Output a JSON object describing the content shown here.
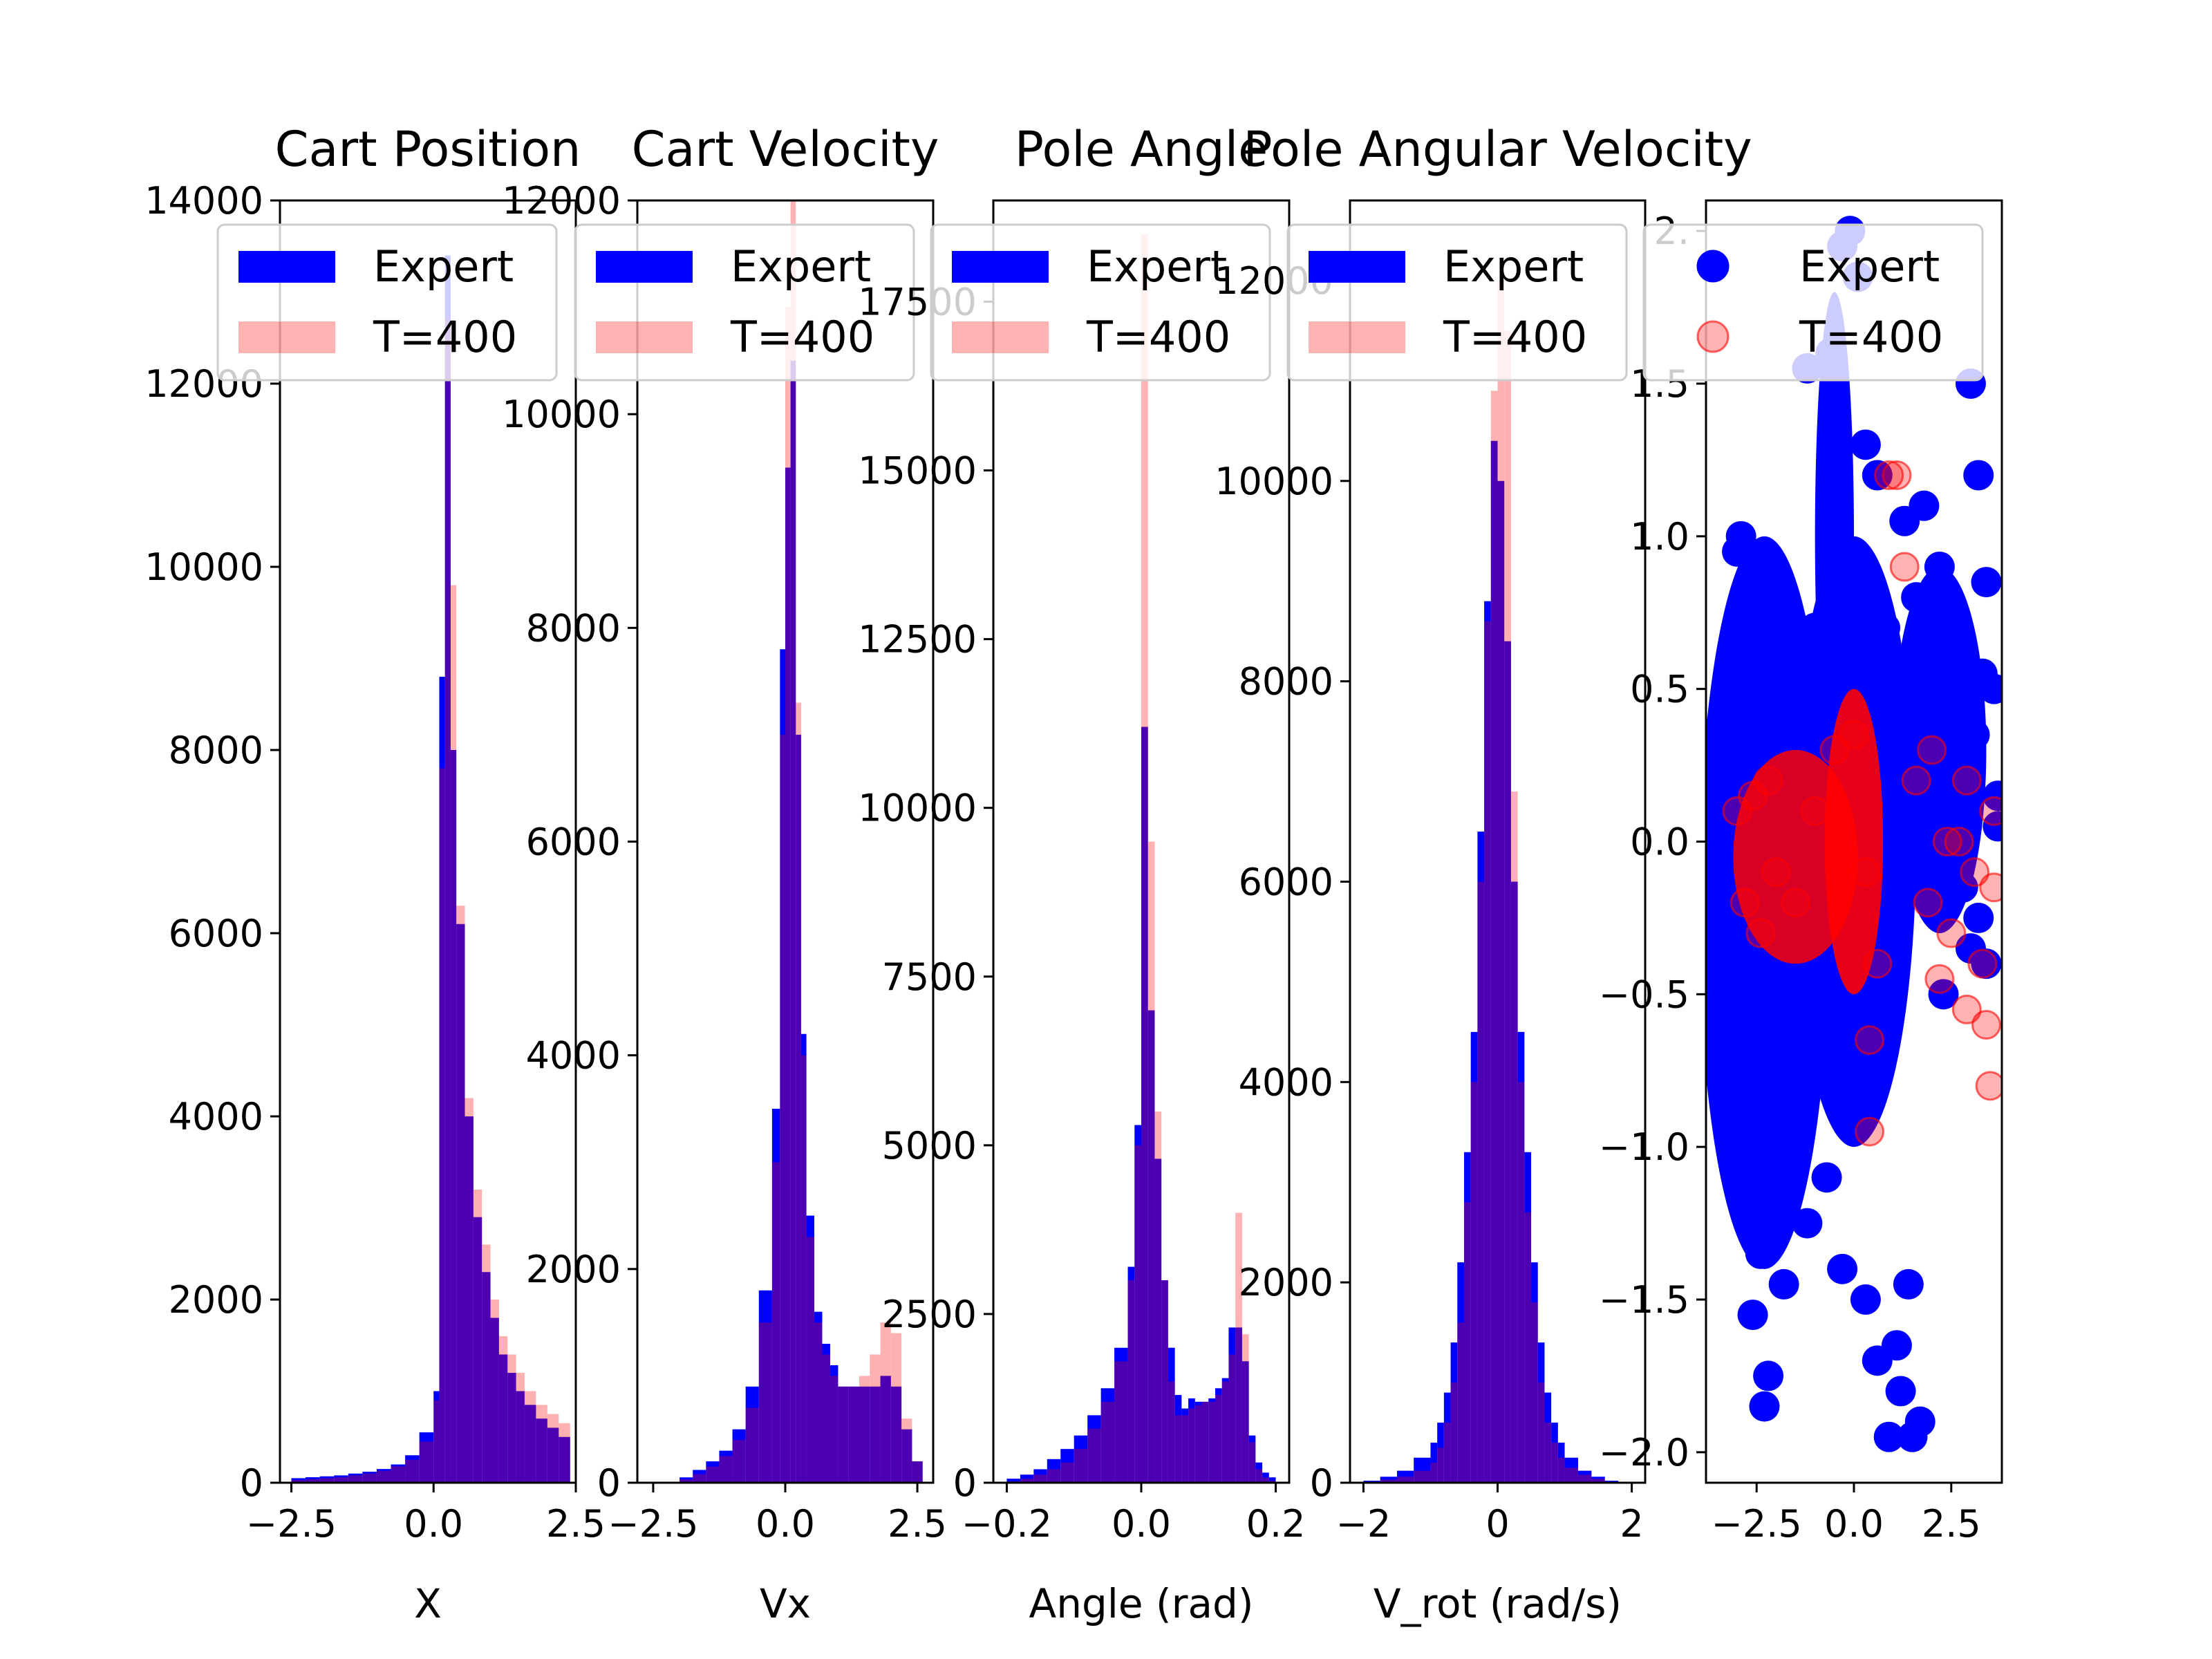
{
  "chart_data": [
    {
      "type": "bar",
      "title": "Cart Position",
      "xlabel": "X",
      "ylabel": "",
      "xlim": [
        -2.7,
        2.5
      ],
      "ylim": [
        0,
        14000
      ],
      "xticks": [
        -2.5,
        0.0,
        2.5
      ],
      "xtick_labels": [
        "−2.5",
        "0.0",
        "2.5"
      ],
      "yticks": [
        0,
        2000,
        4000,
        6000,
        8000,
        10000,
        12000,
        14000
      ],
      "ytick_labels": [
        "0",
        "2000",
        "4000",
        "6000",
        "8000",
        "10000",
        "12000",
        "14000"
      ],
      "legend_position": "top",
      "bin_edges": [
        -2.5,
        -2.25,
        -2.0,
        -1.75,
        -1.5,
        -1.25,
        -1.0,
        -0.75,
        -0.5,
        -0.25,
        0.0,
        0.1,
        0.2,
        0.3,
        0.4,
        0.55,
        0.7,
        0.85,
        1.0,
        1.15,
        1.3,
        1.45,
        1.6,
        1.8,
        2.0,
        2.2,
        2.4
      ],
      "series": [
        {
          "name": "Expert",
          "color": "#0000ff",
          "values": [
            50,
            60,
            70,
            80,
            100,
            120,
            150,
            200,
            300,
            550,
            1000,
            8800,
            13400,
            8000,
            6100,
            4000,
            2900,
            2300,
            1800,
            1400,
            1200,
            1000,
            850,
            700,
            600,
            500
          ]
        },
        {
          "name": "T=400",
          "color": "#ff0000",
          "values": [
            30,
            40,
            50,
            60,
            80,
            100,
            130,
            180,
            250,
            450,
            900,
            7800,
            12700,
            9800,
            6300,
            4200,
            3200,
            2600,
            2000,
            1600,
            1400,
            1200,
            1000,
            850,
            750,
            650
          ]
        }
      ]
    },
    {
      "type": "bar",
      "title": "Cart Velocity",
      "xlabel": "Vx",
      "ylabel": "",
      "xlim": [
        -2.8,
        2.8
      ],
      "ylim": [
        0,
        12000
      ],
      "xticks": [
        -2.5,
        0.0,
        2.5
      ],
      "xtick_labels": [
        "−2.5",
        "0.0",
        "2.5"
      ],
      "yticks": [
        0,
        2000,
        4000,
        6000,
        8000,
        10000,
        12000
      ],
      "ytick_labels": [
        "0",
        "2000",
        "4000",
        "6000",
        "8000",
        "10000",
        "12000"
      ],
      "legend_position": "top",
      "bin_edges": [
        -2.0,
        -1.75,
        -1.5,
        -1.25,
        -1.0,
        -0.75,
        -0.5,
        -0.25,
        -0.1,
        0.0,
        0.1,
        0.2,
        0.3,
        0.4,
        0.55,
        0.7,
        0.85,
        1.0,
        1.2,
        1.4,
        1.6,
        1.8,
        2.0,
        2.2,
        2.4,
        2.6
      ],
      "series": [
        {
          "name": "Expert",
          "color": "#0000ff",
          "values": [
            50,
            120,
            200,
            300,
            500,
            900,
            1800,
            3500,
            7800,
            9500,
            10500,
            7000,
            4200,
            2500,
            1600,
            1300,
            1100,
            900,
            900,
            900,
            900,
            1000,
            900,
            500,
            200
          ]
        },
        {
          "name": "T=400",
          "color": "#ff0000",
          "values": [
            30,
            80,
            150,
            250,
            400,
            700,
            1500,
            3000,
            7000,
            11000,
            12000,
            7300,
            4000,
            2300,
            1500,
            1200,
            1000,
            900,
            900,
            1000,
            1200,
            1500,
            1400,
            600,
            200
          ]
        }
      ]
    },
    {
      "type": "bar",
      "title": "Pole Angle",
      "xlabel": "Angle (rad)",
      "ylabel": "",
      "xlim": [
        -0.22,
        0.22
      ],
      "ylim": [
        0,
        19000
      ],
      "xticks": [
        -0.2,
        0.0,
        0.2
      ],
      "xtick_labels": [
        "−0.2",
        "0.0",
        "0.2"
      ],
      "yticks": [
        0,
        2500,
        5000,
        7500,
        10000,
        12500,
        15000,
        17500
      ],
      "ytick_labels": [
        "0",
        "2500",
        "5000",
        "7500",
        "10000",
        "12500",
        "15000",
        "17500"
      ],
      "legend_position": "top",
      "bin_edges": [
        -0.2,
        -0.18,
        -0.16,
        -0.14,
        -0.12,
        -0.1,
        -0.08,
        -0.06,
        -0.04,
        -0.02,
        -0.01,
        0.0,
        0.01,
        0.02,
        0.03,
        0.04,
        0.05,
        0.06,
        0.07,
        0.08,
        0.09,
        0.1,
        0.11,
        0.12,
        0.13,
        0.14,
        0.15,
        0.16,
        0.17,
        0.18,
        0.19,
        0.2
      ],
      "series": [
        {
          "name": "Expert",
          "color": "#0000ff",
          "values": [
            60,
            120,
            200,
            350,
            500,
            700,
            1000,
            1400,
            2000,
            3200,
            5300,
            11200,
            7000,
            4800,
            3000,
            2000,
            1300,
            1100,
            1250,
            1200,
            1200,
            1250,
            1400,
            1550,
            2300,
            2300,
            1800,
            700,
            300,
            150,
            80
          ]
        },
        {
          "name": "T=400",
          "color": "#ff0000",
          "values": [
            20,
            60,
            120,
            200,
            300,
            500,
            800,
            1200,
            1800,
            3000,
            5000,
            18500,
            9500,
            5500,
            3000,
            1500,
            1000,
            1000,
            1100,
            1150,
            1200,
            1200,
            1300,
            1500,
            1900,
            4000,
            2200,
            600,
            200,
            80,
            30
          ]
        }
      ]
    },
    {
      "type": "bar",
      "title": "Pole Angular Velocity",
      "xlabel": "V_rot (rad/s)",
      "ylabel": "",
      "xlim": [
        -2.2,
        2.2
      ],
      "ylim": [
        0,
        12800
      ],
      "xticks": [
        -2,
        0,
        2
      ],
      "xtick_labels": [
        "−2",
        "0",
        "2"
      ],
      "yticks": [
        0,
        2000,
        4000,
        6000,
        8000,
        10000,
        12000
      ],
      "ytick_labels": [
        "0",
        "2000",
        "4000",
        "6000",
        "8000",
        "10000",
        "12000"
      ],
      "legend_position": "top",
      "bin_edges": [
        -2.0,
        -1.75,
        -1.5,
        -1.25,
        -1.0,
        -0.9,
        -0.8,
        -0.7,
        -0.6,
        -0.5,
        -0.4,
        -0.3,
        -0.2,
        -0.1,
        0.0,
        0.1,
        0.2,
        0.3,
        0.4,
        0.5,
        0.6,
        0.7,
        0.8,
        0.9,
        1.0,
        1.2,
        1.4,
        1.6,
        1.8
      ],
      "series": [
        {
          "name": "Expert",
          "color": "#0000ff",
          "values": [
            20,
            60,
            120,
            250,
            400,
            600,
            900,
            1400,
            2200,
            3300,
            4500,
            6500,
            8800,
            10400,
            10000,
            8400,
            6000,
            4500,
            3300,
            2200,
            1400,
            900,
            600,
            400,
            250,
            120,
            60,
            20
          ]
        },
        {
          "name": "T=400",
          "color": "#ff0000",
          "values": [
            10,
            30,
            60,
            120,
            200,
            350,
            600,
            1000,
            1600,
            2800,
            4000,
            6000,
            8600,
            10900,
            12000,
            11500,
            6900,
            4000,
            2700,
            1800,
            1000,
            600,
            400,
            250,
            150,
            80,
            40,
            10
          ]
        }
      ]
    },
    {
      "type": "scatter",
      "title": "",
      "xlabel": "",
      "ylabel": "",
      "xlim": [
        -3.8,
        3.8
      ],
      "ylim": [
        -2.1,
        2.1
      ],
      "xticks": [
        -2.5,
        0.0,
        2.5
      ],
      "xtick_labels": [
        "−2.5",
        "0.0",
        "2.5"
      ],
      "yticks": [
        -2.0,
        -1.5,
        -1.0,
        -0.5,
        0.0,
        0.5,
        1.0,
        1.5,
        2.0
      ],
      "ytick_labels": [
        "−2.0",
        "−1.5",
        "−1.0",
        "−0.5",
        "0.0",
        "0.5",
        "1.0",
        "1.5",
        "2."
      ],
      "legend_position": "top",
      "series": [
        {
          "name": "Expert",
          "color": "#0000ff",
          "opacity": 1.0,
          "points": [
            [
              -2.9,
              1.0
            ],
            [
              -3.0,
              0.95
            ],
            [
              -2.5,
              0.85
            ],
            [
              -2.3,
              0.65
            ],
            [
              -1.2,
              1.55
            ],
            [
              -0.6,
              1.6
            ],
            [
              -0.3,
              1.95
            ],
            [
              -0.1,
              2.0
            ],
            [
              0.1,
              1.85
            ],
            [
              0.3,
              1.3
            ],
            [
              0.6,
              1.2
            ],
            [
              1.3,
              1.05
            ],
            [
              1.8,
              1.1
            ],
            [
              2.2,
              0.9
            ],
            [
              3.0,
              1.5
            ],
            [
              3.2,
              1.2
            ],
            [
              3.4,
              0.85
            ],
            [
              3.6,
              0.5
            ],
            [
              3.7,
              0.15
            ],
            [
              3.7,
              0.05
            ],
            [
              -3.3,
              0.3
            ],
            [
              -3.2,
              -0.4
            ],
            [
              -3.0,
              -0.9
            ],
            [
              -2.8,
              -1.2
            ],
            [
              -2.6,
              -1.55
            ],
            [
              -2.4,
              -1.35
            ],
            [
              -2.2,
              -1.75
            ],
            [
              -2.3,
              -1.85
            ],
            [
              -1.8,
              -1.45
            ],
            [
              -1.2,
              -1.25
            ],
            [
              -0.7,
              -1.1
            ],
            [
              -0.3,
              -1.4
            ],
            [
              0.3,
              -1.5
            ],
            [
              0.6,
              -1.7
            ],
            [
              0.9,
              -1.95
            ],
            [
              1.2,
              -1.8
            ],
            [
              1.5,
              -1.95
            ],
            [
              1.7,
              -1.9
            ],
            [
              1.1,
              -1.65
            ],
            [
              1.4,
              -1.45
            ],
            [
              2.3,
              -0.5
            ],
            [
              2.8,
              -0.15
            ],
            [
              3.0,
              -0.35
            ],
            [
              3.2,
              -0.25
            ],
            [
              3.4,
              -0.4
            ],
            [
              3.1,
              0.35
            ],
            [
              3.3,
              0.55
            ],
            [
              -1.6,
              0.45
            ],
            [
              -1.0,
              0.7
            ],
            [
              0.8,
              0.7
            ],
            [
              1.6,
              0.8
            ],
            [
              2.6,
              0.65
            ]
          ]
        },
        {
          "name": "T=400",
          "color": "#ff0000",
          "opacity": 0.3,
          "points": [
            [
              -3.0,
              0.1
            ],
            [
              -2.8,
              -0.2
            ],
            [
              -2.6,
              0.15
            ],
            [
              -2.4,
              -0.3
            ],
            [
              -2.2,
              0.2
            ],
            [
              -2.0,
              -0.1
            ],
            [
              -1.5,
              -0.2
            ],
            [
              -1.0,
              0.1
            ],
            [
              -0.5,
              0.3
            ],
            [
              0.0,
              0.35
            ],
            [
              0.3,
              -0.1
            ],
            [
              0.6,
              -0.4
            ],
            [
              0.9,
              1.2
            ],
            [
              1.1,
              1.2
            ],
            [
              1.3,
              0.9
            ],
            [
              1.6,
              0.2
            ],
            [
              1.9,
              -0.2
            ],
            [
              2.2,
              -0.45
            ],
            [
              2.5,
              -0.3
            ],
            [
              2.7,
              0.0
            ],
            [
              2.9,
              0.2
            ],
            [
              3.1,
              -0.1
            ],
            [
              3.3,
              -0.4
            ],
            [
              3.4,
              -0.6
            ],
            [
              3.5,
              -0.8
            ],
            [
              3.6,
              0.1
            ],
            [
              3.6,
              -0.15
            ],
            [
              2.9,
              -0.55
            ],
            [
              2.4,
              0.0
            ],
            [
              2.0,
              0.3
            ],
            [
              0.4,
              -0.65
            ],
            [
              0.4,
              -0.95
            ]
          ]
        }
      ]
    }
  ]
}
